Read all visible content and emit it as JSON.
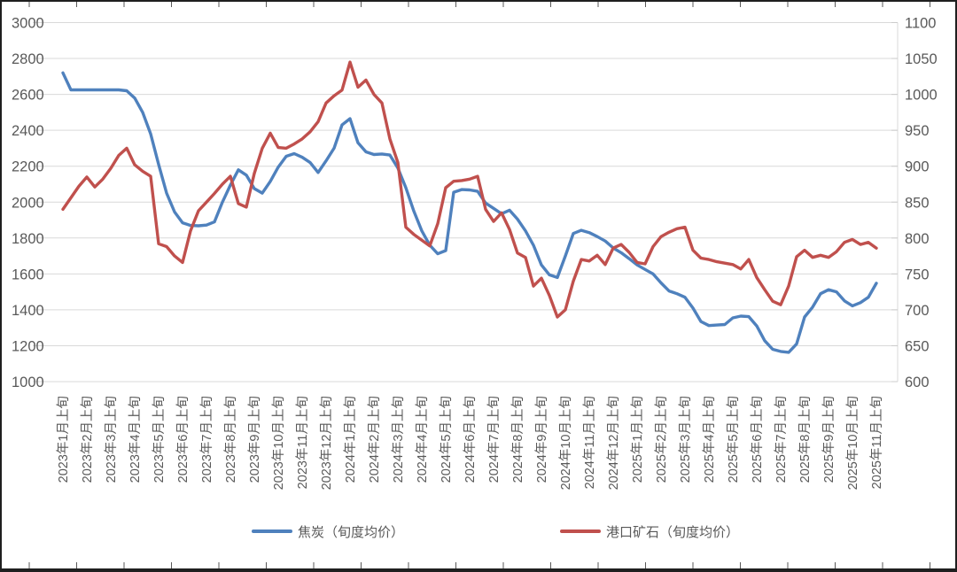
{
  "chart_data": {
    "type": "line",
    "title": "",
    "background": "#ffffff",
    "grid": "horizontal",
    "gridline_color": "#d9d9d9",
    "axis_text_color": "#595959",
    "legend_position": "bottom",
    "left_axis": {
      "min": 1000,
      "max": 3000,
      "step": 200,
      "ticks": [
        "3000",
        "2800",
        "2600",
        "2400",
        "2200",
        "2000",
        "1800",
        "1600",
        "1400",
        "1200",
        "1000"
      ]
    },
    "right_axis": {
      "min": 600,
      "max": 1100,
      "step": 50,
      "ticks": [
        "1100",
        "1050",
        "1000",
        "950",
        "900",
        "850",
        "800",
        "750",
        "700",
        "650",
        "600"
      ]
    },
    "x_axis_labels": [
      "2023年1月上旬",
      "2023年2月上旬",
      "2023年3月上旬",
      "2023年4月上旬",
      "2023年5月上旬",
      "2023年6月上旬",
      "2023年7月上旬",
      "2023年8月上旬",
      "2023年9月上旬",
      "2023年10月上旬",
      "2023年11月上旬",
      "2023年12月上旬",
      "2024年1月上旬",
      "2024年2月上旬",
      "2024年3月上旬",
      "2024年4月上旬",
      "2024年5月上旬",
      "2024年6月上旬",
      "2024年7月上旬",
      "2024年8月上旬",
      "2024年9月上旬",
      "2024年10月上旬",
      "2024年11月上旬",
      "2024年12月上旬",
      "2025年1月上旬",
      "2025年2月上旬",
      "2025年3月上旬",
      "2025年4月上旬",
      "2025年5月上旬",
      "2025年6月上旬",
      "2025年7月上旬",
      "2025年8月上旬",
      "2025年9月上旬",
      "2025年10月上旬",
      "2025年11月上旬"
    ],
    "points_per_month": 3,
    "series": [
      {
        "name": "焦炭（旬度均价）",
        "axis": "left",
        "color": "#4F81BD",
        "values": [
          2720,
          2625,
          2625,
          2625,
          2625,
          2625,
          2625,
          2625,
          2620,
          2580,
          2500,
          2380,
          2210,
          2050,
          1945,
          1885,
          1870,
          1868,
          1872,
          1890,
          2000,
          2095,
          2180,
          2150,
          2075,
          2050,
          2115,
          2195,
          2255,
          2270,
          2250,
          2220,
          2165,
          2230,
          2300,
          2430,
          2465,
          2330,
          2280,
          2265,
          2268,
          2262,
          2190,
          2080,
          1950,
          1840,
          1760,
          1712,
          1730,
          2055,
          2070,
          2068,
          2060,
          1995,
          1965,
          1935,
          1955,
          1905,
          1840,
          1760,
          1650,
          1595,
          1580,
          1700,
          1825,
          1843,
          1830,
          1808,
          1783,
          1745,
          1718,
          1685,
          1650,
          1625,
          1600,
          1550,
          1505,
          1490,
          1470,
          1410,
          1335,
          1312,
          1315,
          1318,
          1355,
          1365,
          1362,
          1310,
          1228,
          1180,
          1168,
          1163,
          1210,
          1360,
          1415,
          1490,
          1512,
          1500,
          1450,
          1422,
          1440,
          1470,
          1548
        ]
      },
      {
        "name": "港口矿石（旬度均价）",
        "axis": "right",
        "color": "#C0504D",
        "values": [
          840,
          856,
          872,
          885,
          871,
          882,
          897,
          915,
          925,
          902,
          893,
          886,
          792,
          788,
          775,
          766,
          810,
          838,
          850,
          862,
          875,
          886,
          848,
          843,
          890,
          925,
          946,
          926,
          925,
          931,
          938,
          948,
          962,
          988,
          998,
          1006,
          1045,
          1010,
          1020,
          1000,
          988,
          938,
          905,
          815,
          805,
          797,
          789,
          820,
          870,
          879,
          880,
          882,
          886,
          840,
          823,
          835,
          812,
          779,
          773,
          733,
          744,
          720,
          690,
          700,
          740,
          770,
          768,
          776,
          763,
          786,
          791,
          780,
          766,
          764,
          788,
          802,
          808,
          813,
          815,
          783,
          772,
          770,
          767,
          765,
          763,
          757,
          770,
          745,
          728,
          712,
          707,
          733,
          774,
          783,
          773,
          776,
          773,
          781,
          794,
          798,
          791,
          794,
          786
        ]
      }
    ]
  },
  "legend": {
    "coke_label": "焦炭（旬度均价）",
    "ore_label": "港口矿石（旬度均价）"
  }
}
